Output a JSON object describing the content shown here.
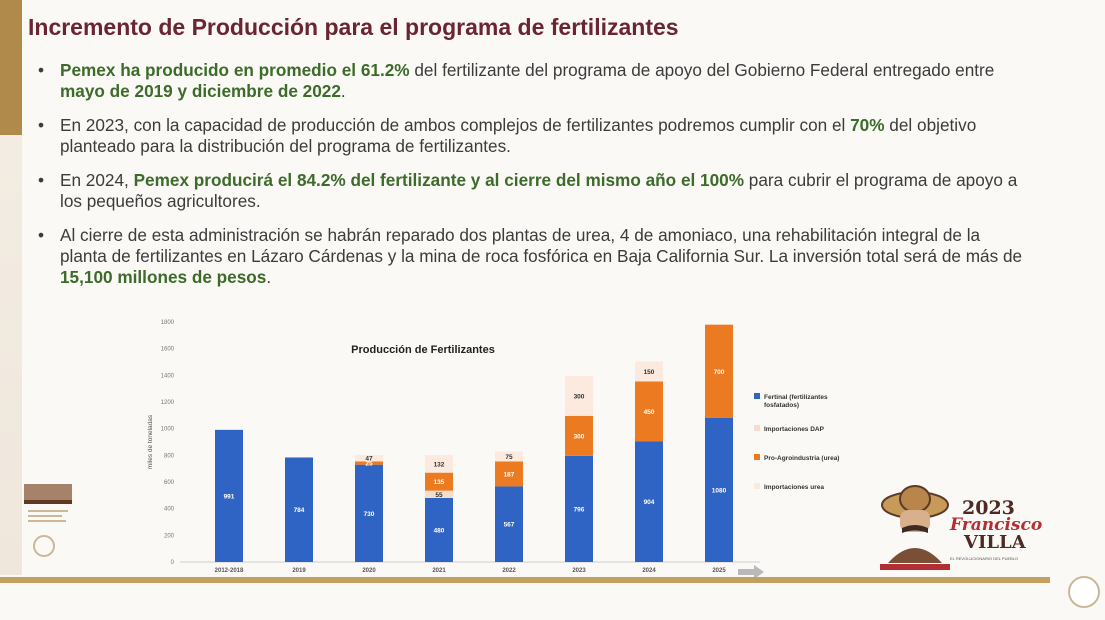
{
  "slide": {
    "title": "Incremento de Producción para el programa de fertilizantes",
    "bullets": [
      [
        {
          "t": "Pemex ha producido en promedio el 61.2%",
          "b": true
        },
        {
          "t": " del fertilizante del programa de apoyo del Gobierno Federal entregado entre ",
          "b": false
        },
        {
          "t": "mayo de 2019 y diciembre de 2022",
          "b": true
        },
        {
          "t": ".",
          "b": false
        }
      ],
      [
        {
          "t": "En 2023, con la capacidad de producción de ambos complejos de fertilizantes podremos cumplir con el ",
          "b": false
        },
        {
          "t": "70%",
          "b": true
        },
        {
          "t": " del objetivo planteado para la distribución del programa de fertilizantes.",
          "b": false
        }
      ],
      [
        {
          "t": "En 2024, ",
          "b": false
        },
        {
          "t": "Pemex producirá el 84.2% del fertilizante y al cierre del mismo año el 100%",
          "b": true
        },
        {
          "t": " para cubrir el programa de apoyo a los pequeños agricultores.",
          "b": false
        }
      ],
      [
        {
          "t": "Al cierre de esta administración se habrán reparado dos plantas de urea, 4 de amoniaco, una rehabilitación integral de la planta de fertilizantes en Lázaro Cárdenas y la mina de roca fosfórica en Baja California Sur.  La inversión total será de más de ",
          "b": false
        },
        {
          "t": "15,100 millones de pesos",
          "b": true
        },
        {
          "t": ".",
          "b": false
        }
      ]
    ]
  },
  "logo": {
    "year": "2023",
    "name_line1": "Francisco",
    "name_line2": "VILLA",
    "subtitle": "EL REVOLUCIONARIO DEL PUEBLO"
  },
  "colors": {
    "fertinal": "#2f63c4",
    "dap": "#f5dccb",
    "proagro": "#ec7a20",
    "urea": "#fbeadd"
  },
  "chart_data": {
    "type": "bar",
    "stacked": true,
    "title": "Producción de Fertilizantes",
    "ylabel": "miles de toneladas",
    "xlabel": "",
    "ylim": [
      0,
      1800
    ],
    "yticks": [
      0,
      200,
      400,
      600,
      800,
      1000,
      1200,
      1400,
      1600,
      1800
    ],
    "categories": [
      "2012-2018",
      "2019",
      "2020",
      "2021",
      "2022",
      "2023",
      "2024",
      "2025"
    ],
    "series": [
      {
        "name": "Fertinal (fertilizantes fosfatados)",
        "values": [
          991,
          784,
          730,
          480,
          567,
          796,
          904,
          1080
        ],
        "labels": [
          "991",
          "784",
          "730",
          "480",
          "567",
          "796",
          "904",
          "1080"
        ]
      },
      {
        "name": "Importaciones DAP",
        "values": [
          0,
          0,
          0,
          55,
          0,
          0,
          0,
          0
        ],
        "labels": [
          "",
          "",
          "",
          "55",
          "",
          "",
          "",
          ""
        ]
      },
      {
        "name": "Pro-Agroindustria (urea)",
        "values": [
          0,
          0,
          25,
          135,
          187,
          300,
          450,
          700
        ],
        "labels": [
          "",
          "",
          "25",
          "135",
          "187",
          "300",
          "450",
          "700"
        ]
      },
      {
        "name": "Importaciones urea",
        "values": [
          0,
          0,
          47,
          132,
          75,
          300,
          150,
          0
        ],
        "labels": [
          "",
          "",
          "47",
          "132",
          "75",
          "300",
          "150",
          ""
        ]
      }
    ],
    "legend_position": "right"
  }
}
